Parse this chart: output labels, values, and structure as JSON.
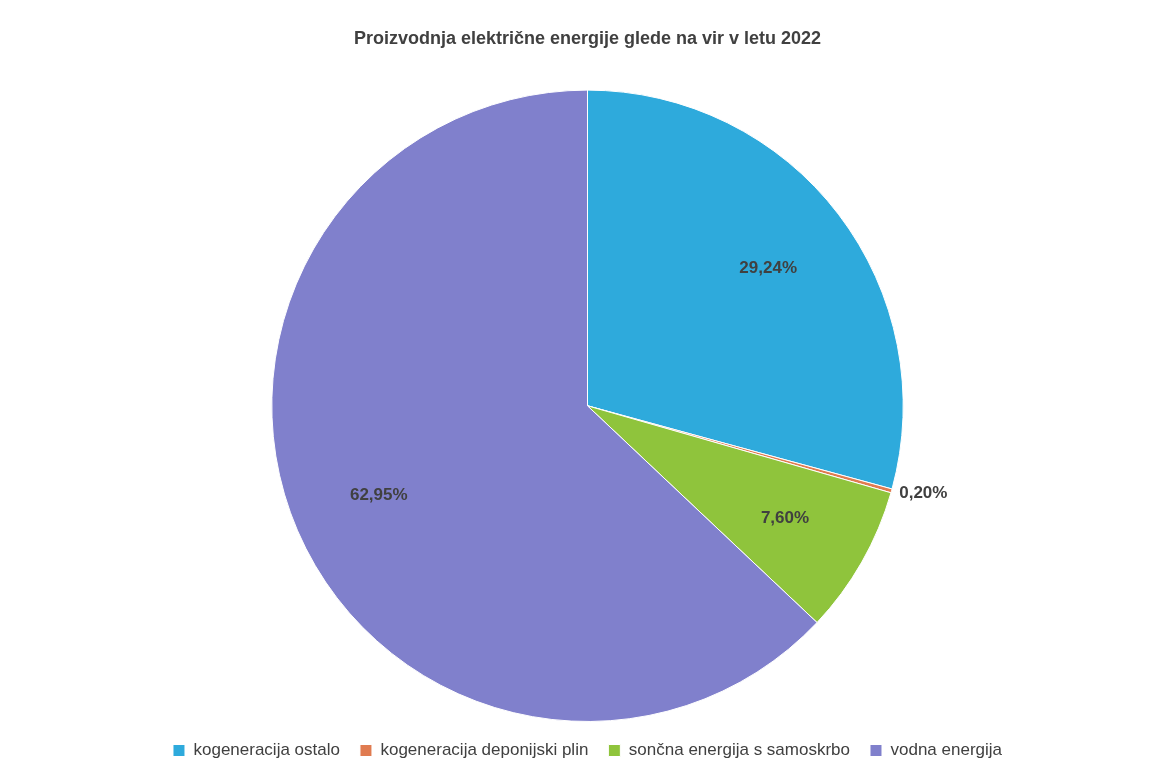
{
  "chart_data": {
    "type": "pie",
    "title": "Proizvodnja električne energije glede na vir v letu 2022",
    "categories": [
      "kogeneracija ostalo",
      "kogeneracija deponijski plin",
      "sončna energija s samoskrbo",
      "vodna energija"
    ],
    "values": [
      29.24,
      0.2,
      7.6,
      62.95
    ],
    "value_labels": [
      "29,24%",
      "0,20%",
      "7,60%",
      "62,95%"
    ],
    "colors": [
      "#2eaadc",
      "#e07b50",
      "#8fc43c",
      "#8080cc"
    ],
    "legend": "bottom"
  }
}
